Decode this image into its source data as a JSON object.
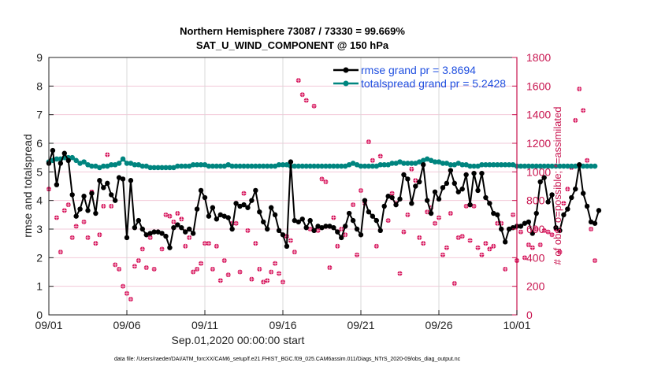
{
  "chart_data": {
    "type": "line",
    "title": "Northern Hemisphere 73087 / 73330 = 99.669%",
    "subtitle": "SAT_U_WIND_COMPONENT @ 150 hPa",
    "xlabel": "Sep.01,2020 00:00:00 start",
    "ylabel": "rmse and totalspread",
    "ylabel_right": "# of obs: o=possible; *=assimilated",
    "x_range_days": [
      0,
      30
    ],
    "ylim": [
      0,
      9
    ],
    "ylim_right": [
      0,
      1800
    ],
    "grid": true,
    "legend_position": "top-right",
    "x_ticks": [
      {
        "day": 0,
        "label": "09/01"
      },
      {
        "day": 5,
        "label": "09/06"
      },
      {
        "day": 10,
        "label": "09/11"
      },
      {
        "day": 15,
        "label": "09/16"
      },
      {
        "day": 20,
        "label": "09/21"
      },
      {
        "day": 25,
        "label": "09/26"
      },
      {
        "day": 30,
        "label": "10/01"
      }
    ],
    "y_ticks": [
      "0",
      "1",
      "2",
      "3",
      "4",
      "5",
      "6",
      "7",
      "8",
      "9"
    ],
    "y_ticks_right": [
      "0",
      "200",
      "400",
      "600",
      "800",
      "1000",
      "1200",
      "1400",
      "1600",
      "1800"
    ],
    "x_step_days": 0.25,
    "series": [
      {
        "name": "rmse",
        "legend": "rmse grand pr = 3.8694",
        "color": "#000000",
        "values": [
          5.3,
          5.75,
          4.55,
          5.3,
          5.65,
          5.4,
          4.2,
          3.45,
          3.7,
          4.15,
          3.65,
          4.25,
          3.55,
          4.7,
          4.45,
          4.6,
          4.2,
          4.0,
          4.8,
          4.75,
          2.7,
          4.7,
          3.05,
          3.3,
          3.0,
          2.8,
          2.85,
          2.9,
          2.9,
          2.85,
          2.75,
          2.35,
          3.05,
          3.15,
          3.05,
          2.9,
          3.0,
          2.85,
          3.7,
          4.35,
          4.1,
          3.45,
          3.75,
          3.35,
          3.5,
          3.45,
          3.4,
          3.0,
          3.9,
          3.8,
          3.85,
          3.75,
          4.0,
          4.35,
          3.6,
          3.25,
          3.0,
          3.75,
          3.5,
          2.95,
          2.8,
          2.4,
          5.35,
          3.3,
          3.25,
          3.35,
          3.05,
          3.3,
          2.95,
          3.1,
          3.05,
          3.1,
          3.1,
          3.05,
          2.9,
          2.7,
          3.1,
          3.55,
          3.3,
          3.0,
          2.8,
          4.0,
          3.6,
          3.45,
          3.3,
          2.95,
          3.8,
          4.15,
          4.1,
          3.85,
          4.05,
          4.9,
          4.75,
          3.9,
          4.5,
          4.65,
          5.25,
          4.0,
          3.55,
          4.3,
          4.05,
          4.45,
          4.6,
          5.05,
          4.6,
          4.3,
          4.4,
          4.9,
          3.85,
          4.95,
          4.35,
          4.95,
          4.1,
          3.9,
          3.55,
          3.5,
          3.0,
          2.55,
          3.0,
          3.05,
          3.1,
          3.1,
          3.2,
          3.25,
          2.85,
          3.55,
          4.65,
          4.8,
          3.95,
          4.2,
          3.05,
          2.95,
          3.5,
          3.7,
          4.1,
          4.4,
          5.25,
          4.25,
          3.8,
          3.25,
          3.2,
          3.65
        ]
      },
      {
        "name": "totalspread",
        "legend": "totalspread grand pr = 5.2428",
        "color": "#00857f",
        "values": [
          5.35,
          5.4,
          5.45,
          5.45,
          5.5,
          5.5,
          5.5,
          5.4,
          5.3,
          5.35,
          5.25,
          5.2,
          5.2,
          5.15,
          5.2,
          5.2,
          5.25,
          5.25,
          5.3,
          5.45,
          5.3,
          5.3,
          5.25,
          5.25,
          5.2,
          5.2,
          5.15,
          5.15,
          5.15,
          5.15,
          5.15,
          5.15,
          5.15,
          5.2,
          5.2,
          5.2,
          5.2,
          5.25,
          5.25,
          5.25,
          5.25,
          5.2,
          5.2,
          5.2,
          5.2,
          5.2,
          5.25,
          5.2,
          5.2,
          5.2,
          5.2,
          5.2,
          5.2,
          5.2,
          5.2,
          5.2,
          5.2,
          5.2,
          5.2,
          5.25,
          5.25,
          5.25,
          5.2,
          5.2,
          5.2,
          5.2,
          5.2,
          5.2,
          5.2,
          5.2,
          5.2,
          5.2,
          5.2,
          5.2,
          5.2,
          5.2,
          5.2,
          5.25,
          5.3,
          5.25,
          5.2,
          5.2,
          5.2,
          5.2,
          5.2,
          5.25,
          5.25,
          5.25,
          5.3,
          5.3,
          5.35,
          5.3,
          5.3,
          5.3,
          5.3,
          5.35,
          5.4,
          5.45,
          5.4,
          5.35,
          5.35,
          5.3,
          5.3,
          5.25,
          5.25,
          5.3,
          5.25,
          5.25,
          5.2,
          5.2,
          5.2,
          5.25,
          5.25,
          5.25,
          5.25,
          5.25,
          5.25,
          5.25,
          5.25,
          5.25,
          5.2,
          5.2,
          5.2,
          5.2,
          5.2,
          5.2,
          5.2,
          5.2,
          5.2,
          5.2,
          5.2,
          5.2,
          5.2,
          5.2,
          5.2,
          5.2,
          5.2,
          5.2,
          5.2,
          5.2,
          5.2
        ]
      },
      {
        "name": "obs_assimilated",
        "axis": "right",
        "color": "#d6125a",
        "values": [
          880,
          1080,
          680,
          440,
          730,
          770,
          540,
          620,
          740,
          650,
          540,
          860,
          500,
          560,
          760,
          1120,
          760,
          350,
          320,
          200,
          150,
          110,
          340,
          380,
          460,
          330,
          540,
          320,
          580,
          460,
          700,
          690,
          650,
          710,
          670,
          480,
          540,
          300,
          320,
          360,
          500,
          500,
          320,
          480,
          240,
          380,
          280,
          640,
          640,
          300,
          850,
          590,
          250,
          500,
          320,
          230,
          240,
          300,
          360,
          290,
          230,
          550,
          520,
          440,
          1640,
          1540,
          1500,
          600,
          1460,
          590,
          950,
          930,
          330,
          680,
          480,
          600,
          560,
          710,
          770,
          420,
          870,
          780,
          1210,
          1080,
          480,
          1110,
          1050,
          660,
          850,
          780,
          290,
          580,
          700,
          1020,
          940,
          540,
          500,
          720,
          750,
          640,
          680,
          420,
          470,
          710,
          220,
          540,
          550,
          760,
          520,
          760,
          470,
          420,
          500,
          460,
          480,
          640,
          640,
          320,
          600,
          700,
          380,
          580,
          400,
          490,
          470,
          600,
          490,
          590,
          580,
          560,
          600,
          440,
          780,
          880,
          1030,
          1360,
          1580,
          1430,
          1080,
          600,
          380
        ]
      }
    ]
  },
  "footer": {
    "data_file": "data file: /Users/raeder/DAI/ATM_forcXX/CAM6_setup/f.e21.FHIST_BGC.f09_025.CAM6assim.011/Diags_NTrS_2020-09/obs_diag_output.nc"
  }
}
